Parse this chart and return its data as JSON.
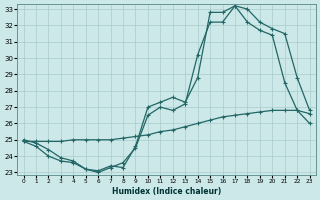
{
  "xlabel": "Humidex (Indice chaleur)",
  "bg_color": "#cce8e8",
  "grid_color": "#aacccc",
  "line_color": "#226666",
  "xmin": 0,
  "xmax": 23,
  "ymin": 23,
  "ymax": 33,
  "line1_x": [
    0,
    1,
    2,
    3,
    4,
    5,
    6,
    7,
    8,
    9,
    10,
    11,
    12,
    13,
    14,
    15,
    16,
    17,
    18,
    19,
    20,
    21,
    22,
    23
  ],
  "line1_y": [
    25.0,
    24.8,
    24.4,
    23.9,
    23.7,
    23.2,
    23.0,
    23.3,
    23.6,
    24.5,
    26.5,
    27.0,
    26.8,
    27.2,
    30.2,
    32.2,
    32.2,
    33.2,
    33.0,
    32.2,
    31.8,
    31.5,
    28.8,
    26.8
  ],
  "line2_x": [
    0,
    1,
    2,
    3,
    4,
    5,
    6,
    7,
    8,
    9,
    10,
    11,
    12,
    13,
    14,
    15,
    16,
    17,
    18,
    19,
    20,
    21,
    22,
    23
  ],
  "line2_y": [
    24.9,
    24.9,
    24.9,
    24.9,
    25.0,
    25.0,
    25.0,
    25.0,
    25.1,
    25.2,
    25.3,
    25.5,
    25.6,
    25.8,
    26.0,
    26.2,
    26.4,
    26.5,
    26.6,
    26.7,
    26.8,
    26.8,
    26.8,
    26.6
  ],
  "line3_x": [
    0,
    1,
    2,
    3,
    4,
    5,
    6,
    7,
    8,
    9,
    10,
    11,
    12,
    13,
    14,
    15,
    16,
    17,
    18,
    19,
    20,
    21,
    22,
    23
  ],
  "line3_y": [
    24.9,
    24.6,
    24.0,
    23.7,
    23.6,
    23.2,
    23.1,
    23.4,
    23.3,
    24.6,
    27.0,
    27.3,
    27.6,
    27.3,
    28.8,
    32.8,
    32.8,
    33.2,
    32.2,
    31.7,
    31.4,
    28.5,
    26.8,
    26.0
  ]
}
